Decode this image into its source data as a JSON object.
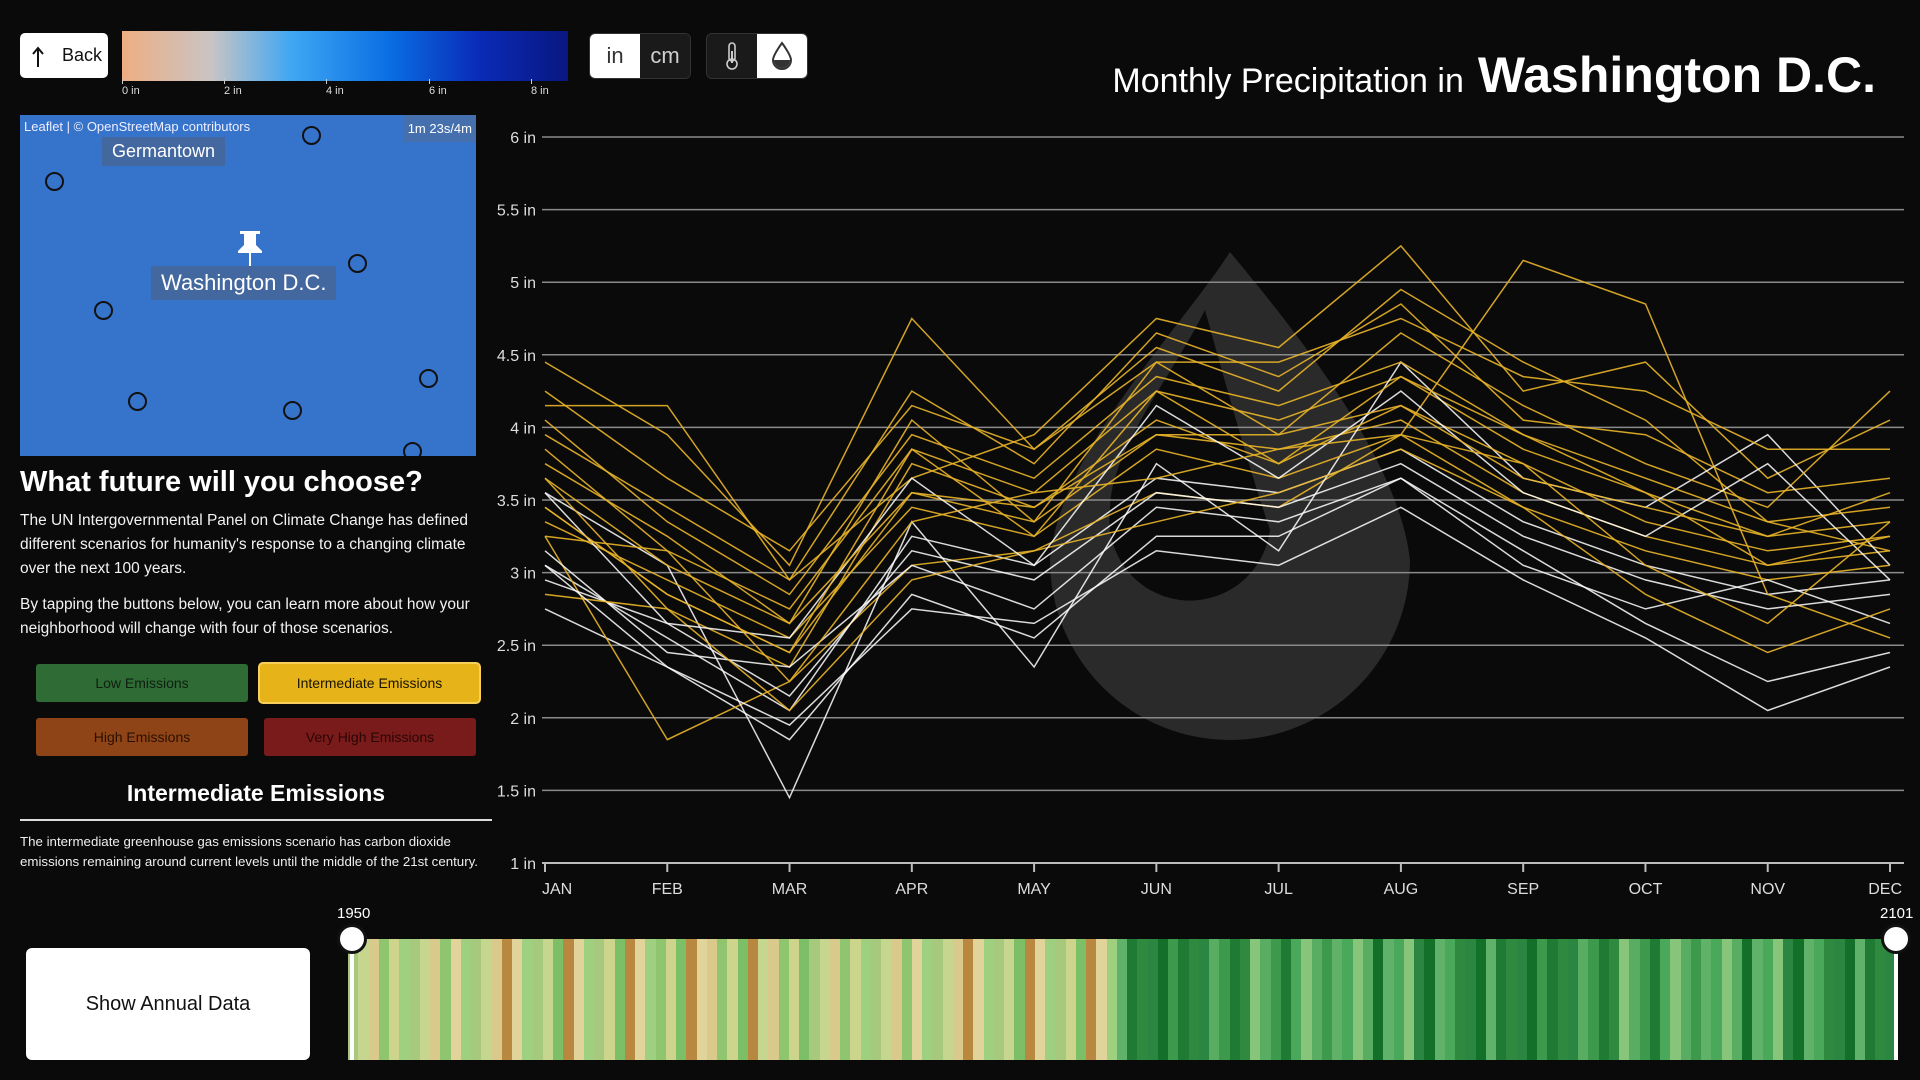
{
  "toolbar": {
    "back_label": "Back",
    "legend_ticks": [
      "0 in",
      "2 in",
      "4 in",
      "6 in",
      "8 in"
    ],
    "unit_in": "in",
    "unit_cm": "cm",
    "selected_unit": "in",
    "mode_temperature_icon": "thermometer-icon",
    "mode_precipitation_icon": "water-drop-icon",
    "selected_mode": "precipitation"
  },
  "title": {
    "prefix": "Monthly Precipitation in",
    "city": "Washington D.C."
  },
  "map": {
    "attribution": "Leaflet | © OpenStreetMap contributors",
    "timer": "1m 23s/4m",
    "label_primary": "Washington D.C.",
    "label_secondary": "Germantown"
  },
  "intro": {
    "heading": "What future will you choose?",
    "para1": "The UN Intergovernmental Panel on Climate Change has defined different scenarios for humanity's response to a changing climate over the next 100 years.",
    "para2": "By tapping the buttons below, you can learn more about how your neighborhood will change with four of those scenarios."
  },
  "scenarios": [
    {
      "label": "Low Emissions",
      "color": "#2e6b35",
      "text": "#0f1f10"
    },
    {
      "label": "Intermediate Emissions",
      "color": "#e6b319",
      "text": "#1a1400"
    },
    {
      "label": "High Emissions",
      "color": "#8e4416",
      "text": "#2a1000"
    },
    {
      "label": "Very High Emissions",
      "color": "#7a1b1b",
      "text": "#2a0505"
    }
  ],
  "selected_scenario": {
    "title": "Intermediate Emissions",
    "description": "The intermediate greenhouse gas emissions scenario has carbon dioxide emissions remaining around current levels until the middle of the 21st century."
  },
  "annual_button": "Show Annual Data",
  "timeline": {
    "start_year": "1950",
    "end_year": "2101"
  },
  "colors": {
    "line_future": "#e8b428",
    "line_past": "#ffffff",
    "background": "#0b0a0a"
  },
  "chart_data": {
    "type": "line",
    "title": "Monthly Precipitation in Washington D.C.",
    "categories": [
      "JAN",
      "FEB",
      "MAR",
      "APR",
      "MAY",
      "JUN",
      "JUL",
      "AUG",
      "SEP",
      "OCT",
      "NOV",
      "DEC"
    ],
    "yticks": [
      "1 in",
      "1.5 in",
      "2 in",
      "2.5 in",
      "3 in",
      "3.5 in",
      "4 in",
      "4.5 in",
      "5 in",
      "5.5 in",
      "6 in"
    ],
    "ylim": [
      1,
      6
    ],
    "unit": "in",
    "grid": true,
    "series": [
      {
        "values": [
          3.45,
          2.85,
          2.45,
          3.55,
          3.35,
          3.95,
          3.85,
          4.05,
          3.55,
          3.25,
          3.05,
          3.15
        ]
      },
      {
        "values": [
          3.05,
          2.55,
          2.05,
          3.25,
          3.05,
          3.65,
          3.55,
          3.85,
          3.35,
          3.05,
          2.85,
          2.95
        ]
      },
      {
        "values": [
          3.85,
          3.15,
          2.75,
          3.85,
          3.55,
          4.25,
          4.05,
          4.35,
          3.85,
          3.55,
          3.25,
          3.35
        ]
      },
      {
        "values": [
          4.45,
          3.95,
          3.05,
          4.75,
          3.85,
          4.55,
          4.25,
          4.95,
          4.45,
          4.05,
          3.35,
          3.15
        ]
      },
      {
        "values": [
          2.75,
          2.35,
          1.85,
          2.85,
          2.55,
          3.25,
          3.25,
          3.65,
          3.15,
          2.65,
          2.25,
          2.45
        ]
      },
      {
        "values": [
          4.15,
          4.15,
          2.95,
          3.65,
          3.95,
          4.75,
          4.55,
          5.25,
          4.25,
          4.45,
          3.65,
          4.05
        ]
      },
      {
        "values": [
          3.25,
          1.85,
          2.25,
          3.05,
          3.15,
          3.55,
          3.45,
          3.95,
          5.15,
          4.85,
          2.85,
          2.55
        ]
      },
      {
        "values": [
          3.55,
          3.05,
          1.45,
          3.35,
          2.35,
          3.75,
          3.15,
          4.45,
          3.65,
          3.45,
          3.95,
          3.05
        ]
      },
      {
        "values": [
          3.65,
          2.75,
          2.35,
          3.75,
          3.45,
          4.05,
          3.75,
          4.15,
          3.75,
          3.35,
          3.15,
          3.25
        ]
      },
      {
        "values": [
          3.35,
          2.95,
          2.55,
          3.45,
          3.25,
          3.85,
          3.65,
          3.95,
          3.45,
          3.15,
          2.95,
          3.05
        ]
      },
      {
        "values": [
          2.95,
          2.65,
          2.15,
          3.15,
          2.95,
          3.55,
          3.45,
          3.75,
          3.25,
          2.95,
          2.75,
          2.85
        ]
      },
      {
        "values": [
          4.05,
          3.35,
          2.85,
          3.95,
          3.65,
          4.35,
          4.15,
          4.45,
          3.95,
          3.65,
          3.35,
          3.45
        ]
      },
      {
        "values": [
          3.75,
          3.25,
          2.65,
          4.05,
          3.35,
          4.45,
          3.95,
          4.65,
          4.15,
          3.75,
          3.45,
          4.25
        ]
      },
      {
        "values": [
          3.15,
          2.45,
          2.35,
          3.05,
          2.75,
          3.45,
          3.35,
          3.65,
          3.05,
          2.75,
          2.95,
          2.65
        ]
      },
      {
        "values": [
          2.85,
          2.75,
          2.05,
          2.95,
          3.15,
          3.35,
          3.55,
          3.85,
          3.45,
          2.85,
          2.45,
          2.75
        ]
      },
      {
        "values": [
          3.95,
          3.45,
          2.95,
          4.25,
          3.75,
          4.65,
          4.35,
          4.85,
          4.05,
          3.95,
          3.55,
          3.65
        ]
      },
      {
        "values": [
          3.55,
          2.65,
          2.55,
          3.65,
          3.05,
          4.15,
          3.65,
          4.25,
          3.55,
          3.25,
          3.75,
          2.95
        ]
      },
      {
        "values": [
          3.25,
          3.15,
          2.25,
          3.35,
          3.55,
          3.65,
          3.85,
          3.95,
          3.75,
          3.05,
          2.65,
          3.35
        ]
      },
      {
        "values": [
          4.25,
          3.65,
          3.15,
          4.15,
          3.85,
          4.45,
          4.45,
          4.75,
          4.35,
          4.25,
          3.85,
          3.85
        ]
      },
      {
        "values": [
          3.05,
          2.35,
          1.95,
          2.75,
          2.65,
          3.15,
          3.05,
          3.45,
          2.95,
          2.55,
          2.05,
          2.35
        ]
      },
      {
        "values": [
          3.65,
          3.05,
          2.65,
          3.55,
          3.45,
          3.95,
          3.95,
          4.15,
          3.65,
          3.45,
          3.25,
          3.55
        ]
      },
      {
        "values": [
          3.45,
          2.85,
          2.45,
          3.85,
          3.25,
          4.25,
          3.75,
          4.35,
          3.95,
          3.55,
          3.05,
          3.25
        ]
      }
    ],
    "series_past_count": 8
  }
}
